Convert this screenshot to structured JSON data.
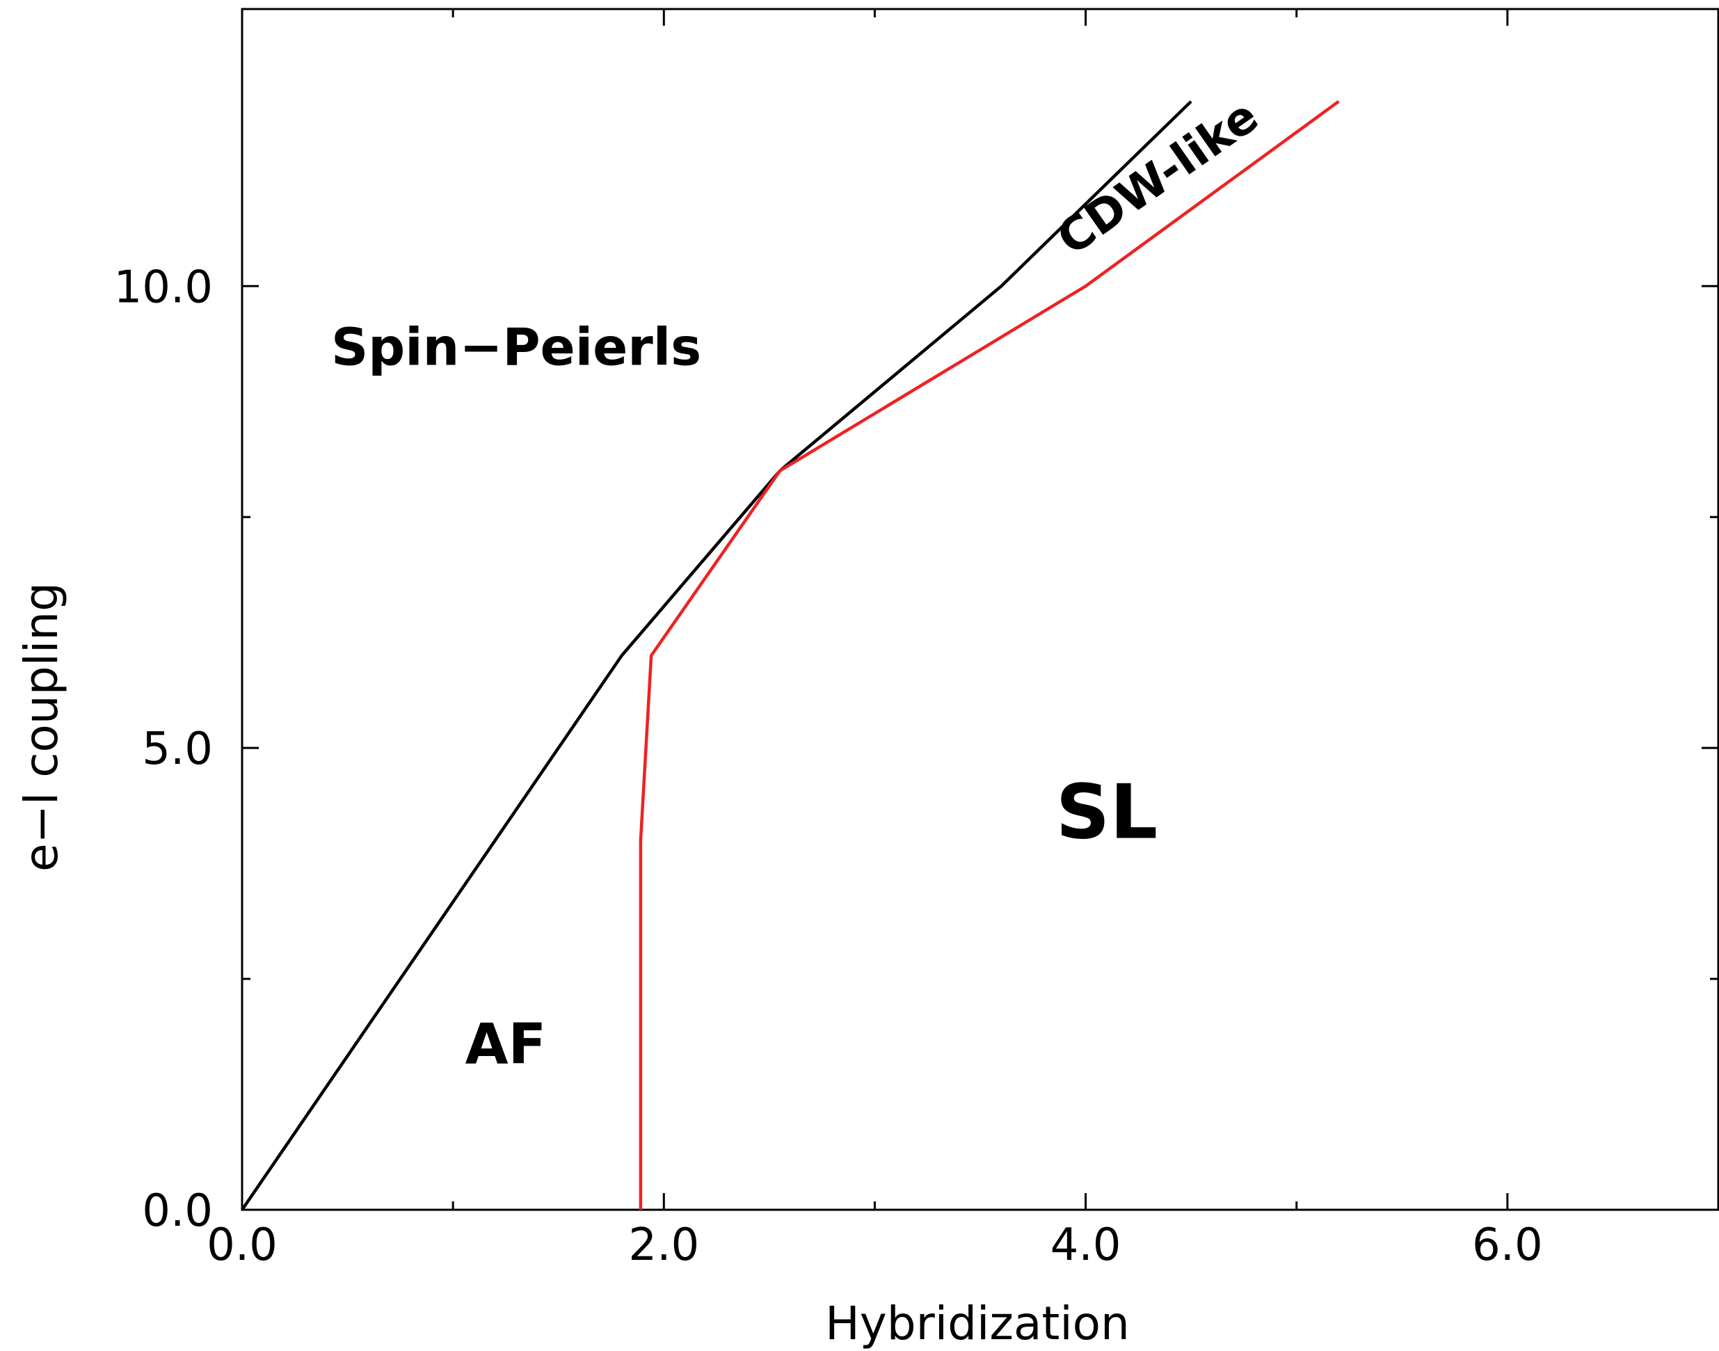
{
  "chart_data": {
    "type": "line",
    "title": "",
    "xlabel": "Hybridization",
    "ylabel": "e−l coupling",
    "xlim": [
      0,
      7
    ],
    "ylim": [
      0,
      13
    ],
    "x_ticks_major": [
      0,
      2,
      4,
      6
    ],
    "x_tick_labels": [
      "0.0",
      "2.0",
      "4.0",
      "6.0"
    ],
    "x_ticks_minor": [
      1,
      3,
      5,
      7
    ],
    "y_ticks_major": [
      0,
      5,
      10
    ],
    "y_tick_labels": [
      "0.0",
      "5.0",
      "10.0"
    ],
    "y_ticks_minor": [
      2.5,
      7.5
    ],
    "grid": false,
    "series": [
      {
        "color": "#000000",
        "points": [
          [
            0,
            0
          ],
          [
            1.8,
            6
          ],
          [
            2.55,
            8
          ],
          [
            3.6,
            10
          ],
          [
            4.5,
            12
          ]
        ]
      },
      {
        "color": "#ee2222",
        "points": [
          [
            1.89,
            0
          ],
          [
            1.89,
            4
          ],
          [
            1.94,
            6
          ],
          [
            2.55,
            8
          ],
          [
            4.0,
            10
          ],
          [
            5.2,
            12
          ]
        ]
      }
    ],
    "annotations": [
      {
        "text": "Spin−Peierls",
        "x": 1.3,
        "y": 9.3
      },
      {
        "text": "CDW-like",
        "x": 4.35,
        "y": 11.15
      },
      {
        "text": "SL",
        "x": 4.1,
        "y": 4.25
      },
      {
        "text": "AF",
        "x": 1.25,
        "y": 1.75
      }
    ]
  }
}
